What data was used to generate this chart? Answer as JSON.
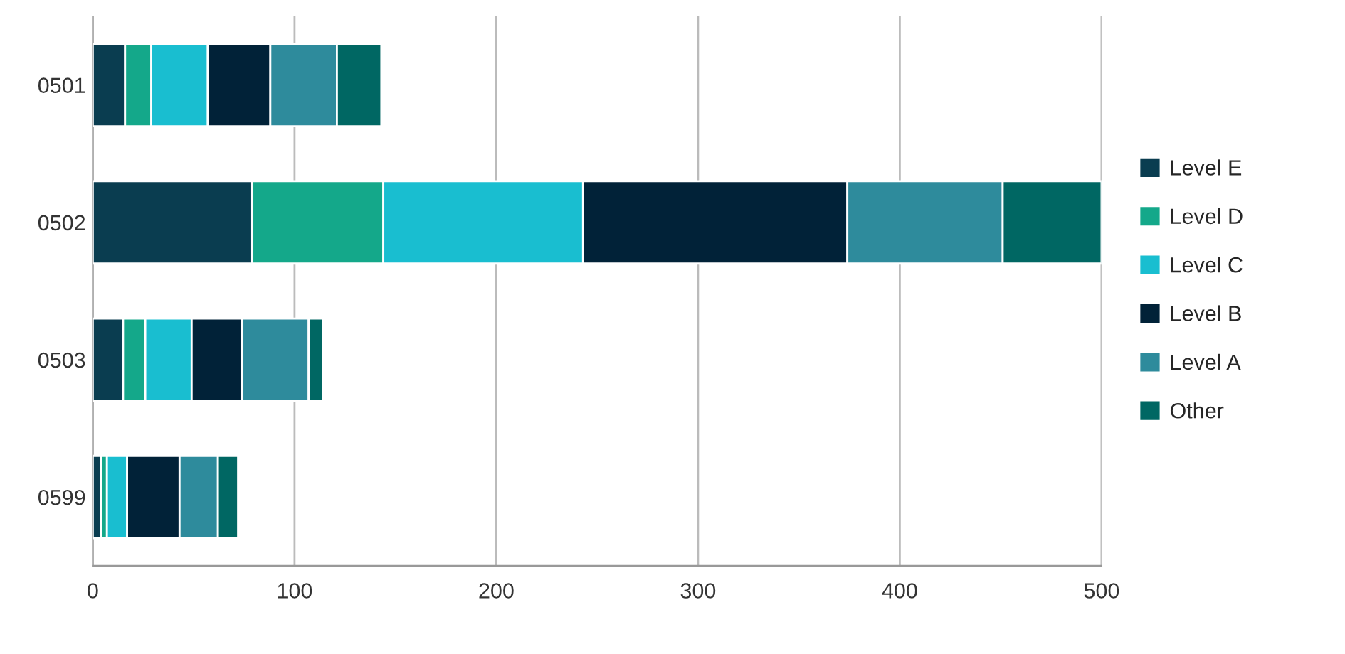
{
  "chart_data": {
    "type": "bar",
    "orientation": "horizontal",
    "stacked": true,
    "categories": [
      "0501",
      "0502",
      "0503",
      "0599"
    ],
    "series": [
      {
        "name": "Level E",
        "color": "#0a3d50",
        "values": [
          16,
          79,
          15,
          4
        ]
      },
      {
        "name": "Level D",
        "color": "#14a88a",
        "values": [
          13,
          65,
          11,
          3
        ]
      },
      {
        "name": "Level C",
        "color": "#19bed0",
        "values": [
          28,
          99,
          23,
          10
        ]
      },
      {
        "name": "Level B",
        "color": "#012238",
        "values": [
          31,
          131,
          25,
          26
        ]
      },
      {
        "name": "Level A",
        "color": "#2e8b9c",
        "values": [
          33,
          77,
          33,
          19
        ]
      },
      {
        "name": "Other",
        "color": "#006763",
        "values": [
          22,
          49,
          7,
          10
        ]
      }
    ],
    "xlim": [
      0,
      500
    ],
    "xticks": [
      0,
      100,
      200,
      300,
      400,
      500
    ],
    "grid": "x",
    "legend": "right"
  }
}
